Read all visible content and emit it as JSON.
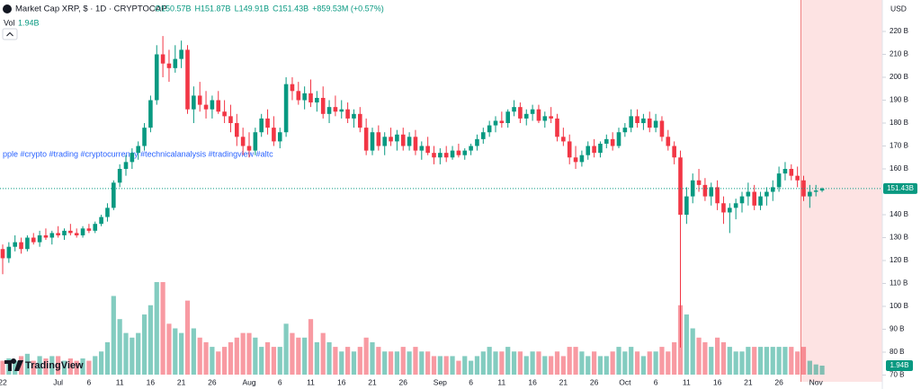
{
  "chart_data": {
    "type": "candlestick",
    "title": "Market Cap XRP, $ · 1D · CRYPTOCAP",
    "header_stats": [
      "O150.57B",
      "H151.87B",
      "L149.91B",
      "C151.43B",
      "+859.53M (+0.57%)"
    ],
    "volume_title": "Vol",
    "volume_value_label": "1.94B",
    "price_label": "151.43B",
    "currency": "USD",
    "annotation": "pple #crypto #trading #cryptocurrency #technicalanalysis #tradingview #altc",
    "watermark": "TradingView",
    "up_color": "#089981",
    "down_color": "#f23645",
    "ylim": [
      67.06,
      233.73
    ],
    "volume_ylim": [
      0,
      20
    ],
    "yticks": [
      {
        "value": 70,
        "label": "70 B"
      },
      {
        "value": 80,
        "label": "80 B"
      },
      {
        "value": 90,
        "label": "90 B"
      },
      {
        "value": 100,
        "label": "100 B"
      },
      {
        "value": 110,
        "label": "110 B"
      },
      {
        "value": 120,
        "label": "120 B"
      },
      {
        "value": 130,
        "label": "130 B"
      },
      {
        "value": 140,
        "label": "140 B"
      },
      {
        "value": 160,
        "label": "160 B"
      },
      {
        "value": 170,
        "label": "170 B"
      },
      {
        "value": 180,
        "label": "180 B"
      },
      {
        "value": 190,
        "label": "190 B"
      },
      {
        "value": 200,
        "label": "200 B"
      },
      {
        "value": 210,
        "label": "210 B"
      },
      {
        "value": 220,
        "label": "220 B"
      }
    ],
    "categories": [
      "22",
      null,
      null,
      null,
      null,
      null,
      null,
      null,
      null,
      "Jul",
      null,
      null,
      null,
      null,
      "6",
      null,
      null,
      null,
      null,
      "11",
      null,
      null,
      null,
      null,
      "16",
      null,
      null,
      null,
      null,
      "21",
      null,
      null,
      null,
      null,
      "26",
      null,
      null,
      null,
      null,
      null,
      "Aug",
      null,
      null,
      null,
      null,
      "6",
      null,
      null,
      null,
      null,
      "11",
      null,
      null,
      null,
      null,
      "16",
      null,
      null,
      null,
      null,
      "21",
      null,
      null,
      null,
      null,
      "26",
      null,
      null,
      null,
      null,
      null,
      "Sep",
      null,
      null,
      null,
      null,
      "6",
      null,
      null,
      null,
      null,
      "11",
      null,
      null,
      null,
      null,
      "16",
      null,
      null,
      null,
      null,
      "21",
      null,
      null,
      null,
      null,
      "26",
      null,
      null,
      null,
      null,
      "Oct",
      null,
      null,
      null,
      null,
      "6",
      null,
      null,
      null,
      null,
      "11",
      null,
      null,
      null,
      null,
      "16",
      null,
      null,
      null,
      null,
      "21",
      null,
      null,
      null,
      null,
      "26",
      null,
      null,
      null,
      null,
      null,
      "Nov",
      null
    ],
    "candles": [
      [
        125,
        127,
        114,
        121,
        3
      ],
      [
        121,
        128,
        119,
        126,
        3.5
      ],
      [
        126,
        131,
        124,
        128,
        3
      ],
      [
        128,
        130,
        123,
        125,
        4
      ],
      [
        125,
        131,
        124,
        130,
        4.5
      ],
      [
        130,
        132,
        127,
        128,
        3
      ],
      [
        128,
        133,
        126,
        131,
        4
      ],
      [
        131,
        134,
        129,
        130,
        3.5
      ],
      [
        130,
        133,
        127,
        132,
        4
      ],
      [
        132,
        135,
        130,
        131,
        4
      ],
      [
        131,
        134,
        129,
        133,
        3
      ],
      [
        133,
        136,
        131,
        132,
        3.5
      ],
      [
        132,
        134,
        130,
        131,
        3
      ],
      [
        131,
        135,
        130,
        134,
        3.5
      ],
      [
        134,
        136,
        132,
        133,
        3
      ],
      [
        133,
        137,
        132,
        136,
        4
      ],
      [
        136,
        140,
        135,
        139,
        5
      ],
      [
        139,
        145,
        137,
        143,
        7
      ],
      [
        143,
        155,
        142,
        154,
        17
      ],
      [
        154,
        162,
        152,
        160,
        12
      ],
      [
        160,
        166,
        157,
        163,
        9
      ],
      [
        163,
        169,
        160,
        167,
        8
      ],
      [
        167,
        172,
        164,
        170,
        9
      ],
      [
        170,
        180,
        168,
        178,
        13
      ],
      [
        178,
        192,
        176,
        190,
        15
      ],
      [
        190,
        214,
        188,
        210,
        20
      ],
      [
        210,
        218,
        200,
        206,
        20
      ],
      [
        206,
        212,
        198,
        204,
        11
      ],
      [
        204,
        214,
        202,
        208,
        10
      ],
      [
        208,
        216,
        204,
        212,
        9
      ],
      [
        212,
        214,
        184,
        186,
        16
      ],
      [
        186,
        196,
        180,
        192,
        10
      ],
      [
        192,
        198,
        185,
        188,
        8
      ],
      [
        188,
        194,
        182,
        186,
        7
      ],
      [
        186,
        192,
        182,
        190,
        6
      ],
      [
        190,
        194,
        184,
        185,
        5
      ],
      [
        185,
        190,
        180,
        183,
        6
      ],
      [
        183,
        188,
        176,
        180,
        7
      ],
      [
        180,
        184,
        170,
        174,
        8
      ],
      [
        174,
        178,
        166,
        170,
        9
      ],
      [
        170,
        176,
        165,
        168,
        9
      ],
      [
        168,
        178,
        166,
        176,
        8
      ],
      [
        176,
        184,
        174,
        182,
        6
      ],
      [
        182,
        186,
        175,
        178,
        7
      ],
      [
        178,
        183,
        170,
        172,
        6
      ],
      [
        172,
        178,
        169,
        176,
        6
      ],
      [
        176,
        200,
        174,
        197,
        11
      ],
      [
        197,
        200,
        190,
        194,
        9
      ],
      [
        194,
        198,
        188,
        190,
        8
      ],
      [
        190,
        196,
        186,
        193,
        8
      ],
      [
        193,
        199,
        187,
        189,
        12
      ],
      [
        189,
        194,
        185,
        191,
        7
      ],
      [
        191,
        196,
        182,
        184,
        9
      ],
      [
        184,
        190,
        180,
        187,
        7
      ],
      [
        187,
        192,
        183,
        185,
        6
      ],
      [
        185,
        190,
        182,
        186,
        5
      ],
      [
        186,
        189,
        180,
        182,
        6
      ],
      [
        182,
        186,
        178,
        184,
        5
      ],
      [
        184,
        187,
        176,
        178,
        6
      ],
      [
        178,
        182,
        166,
        168,
        8
      ],
      [
        168,
        178,
        166,
        176,
        7
      ],
      [
        176,
        179,
        168,
        170,
        6
      ],
      [
        170,
        176,
        166,
        174,
        5
      ],
      [
        174,
        178,
        170,
        172,
        5
      ],
      [
        172,
        177,
        168,
        175,
        5
      ],
      [
        175,
        178,
        168,
        170,
        6
      ],
      [
        170,
        176,
        168,
        174,
        5
      ],
      [
        174,
        177,
        166,
        168,
        6
      ],
      [
        168,
        172,
        164,
        170,
        5
      ],
      [
        170,
        174,
        166,
        167,
        5
      ],
      [
        167,
        170,
        162,
        165,
        4
      ],
      [
        165,
        169,
        162,
        167,
        4
      ],
      [
        167,
        170,
        163,
        165,
        4
      ],
      [
        165,
        170,
        164,
        168,
        4
      ],
      [
        168,
        171,
        165,
        166,
        3
      ],
      [
        166,
        169,
        164,
        168,
        4
      ],
      [
        168,
        171,
        166,
        170,
        3
      ],
      [
        170,
        175,
        168,
        173,
        4
      ],
      [
        173,
        178,
        171,
        176,
        5
      ],
      [
        176,
        181,
        174,
        179,
        6
      ],
      [
        179,
        183,
        176,
        181,
        5
      ],
      [
        181,
        185,
        178,
        180,
        5
      ],
      [
        180,
        186,
        178,
        185,
        6
      ],
      [
        185,
        190,
        183,
        187,
        5
      ],
      [
        187,
        189,
        180,
        182,
        5
      ],
      [
        182,
        186,
        179,
        184,
        4
      ],
      [
        184,
        188,
        181,
        186,
        5
      ],
      [
        186,
        188,
        180,
        181,
        5
      ],
      [
        181,
        185,
        178,
        183,
        4
      ],
      [
        183,
        187,
        180,
        182,
        4
      ],
      [
        182,
        184,
        172,
        174,
        5
      ],
      [
        174,
        178,
        170,
        172,
        4
      ],
      [
        172,
        175,
        162,
        165,
        6
      ],
      [
        165,
        170,
        160,
        163,
        6
      ],
      [
        163,
        168,
        161,
        166,
        5
      ],
      [
        166,
        172,
        164,
        170,
        4
      ],
      [
        170,
        173,
        165,
        167,
        5
      ],
      [
        167,
        172,
        165,
        171,
        4
      ],
      [
        171,
        175,
        169,
        173,
        4
      ],
      [
        173,
        176,
        168,
        170,
        5
      ],
      [
        170,
        178,
        169,
        176,
        6
      ],
      [
        176,
        180,
        174,
        178,
        5
      ],
      [
        178,
        186,
        176,
        183,
        6
      ],
      [
        183,
        186,
        178,
        180,
        5
      ],
      [
        180,
        184,
        177,
        182,
        4
      ],
      [
        182,
        185,
        176,
        178,
        5
      ],
      [
        178,
        184,
        176,
        181,
        5
      ],
      [
        181,
        183,
        172,
        174,
        6
      ],
      [
        174,
        177,
        168,
        170,
        5
      ],
      [
        170,
        172,
        162,
        165,
        7
      ],
      [
        165,
        168,
        82,
        140,
        15
      ],
      [
        140,
        152,
        136,
        148,
        13
      ],
      [
        148,
        158,
        145,
        155,
        10
      ],
      [
        155,
        160,
        150,
        153,
        8
      ],
      [
        153,
        156,
        146,
        148,
        7
      ],
      [
        148,
        154,
        144,
        152,
        6
      ],
      [
        152,
        155,
        142,
        145,
        8
      ],
      [
        145,
        148,
        136,
        141,
        7
      ],
      [
        141,
        145,
        132,
        143,
        6
      ],
      [
        143,
        147,
        138,
        145,
        5
      ],
      [
        145,
        150,
        141,
        148,
        5
      ],
      [
        148,
        154,
        144,
        150,
        6
      ],
      [
        150,
        153,
        142,
        144,
        6
      ],
      [
        144,
        150,
        142,
        148,
        6
      ],
      [
        148,
        152,
        144,
        150,
        6
      ],
      [
        150,
        155,
        146,
        152,
        6
      ],
      [
        152,
        161,
        150,
        158,
        6
      ],
      [
        158,
        163,
        155,
        160,
        6
      ],
      [
        160,
        162,
        155,
        157,
        6
      ],
      [
        157,
        161,
        152,
        155,
        5
      ],
      [
        155,
        157,
        146,
        148,
        6
      ],
      [
        148,
        153,
        143,
        150,
        3
      ],
      [
        150,
        153,
        148,
        150.57,
        2.2
      ],
      [
        150.57,
        151.87,
        149.91,
        151.43,
        1.94
      ]
    ]
  }
}
